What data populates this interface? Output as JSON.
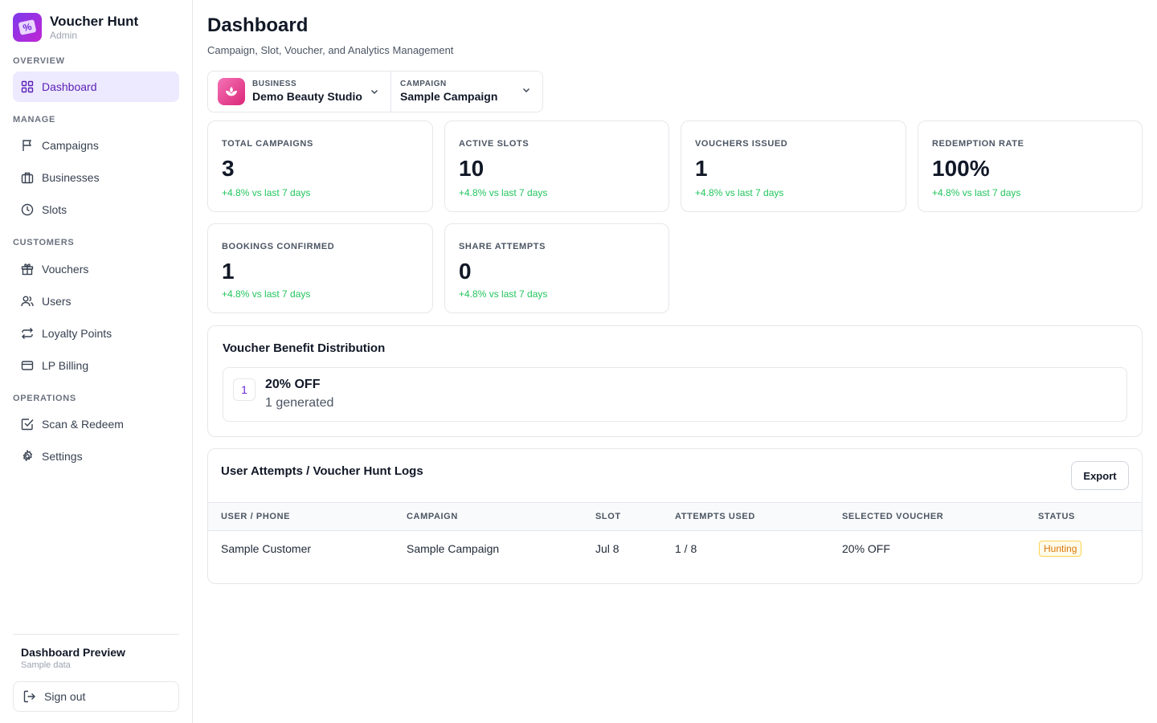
{
  "brand": {
    "name": "Voucher Hunt",
    "sub": "Admin",
    "logo_glyph": "%"
  },
  "sidebar": {
    "sections": {
      "overview": "OVERVIEW",
      "manage": "MANAGE",
      "customers": "CUSTOMERS",
      "operations": "OPERATIONS"
    },
    "items": {
      "dashboard": "Dashboard",
      "campaigns": "Campaigns",
      "businesses": "Businesses",
      "slots": "Slots",
      "vouchers": "Vouchers",
      "users": "Users",
      "loyalty": "Loyalty Points",
      "billing": "LP Billing",
      "scan": "Scan & Redeem",
      "settings": "Settings"
    },
    "footer": {
      "title": "Dashboard Preview",
      "sub": "Sample data",
      "signout": "Sign out"
    }
  },
  "header": {
    "title": "Dashboard",
    "subtitle": "Campaign, Slot, Voucher, and Analytics Management"
  },
  "selector": {
    "business_label": "BUSINESS",
    "business_value": "Demo Beauty Studio",
    "campaign_label": "CAMPAIGN",
    "campaign_value": "Sample Campaign"
  },
  "stats": [
    {
      "label": "TOTAL CAMPAIGNS",
      "value": "3",
      "delta": "+4.8% vs last 7 days"
    },
    {
      "label": "ACTIVE SLOTS",
      "value": "10",
      "delta": "+4.8% vs last 7 days"
    },
    {
      "label": "VOUCHERS ISSUED",
      "value": "1",
      "delta": "+4.8% vs last 7 days"
    },
    {
      "label": "REDEMPTION RATE",
      "value": "100%",
      "delta": "+4.8% vs last 7 days"
    },
    {
      "label": "BOOKINGS CONFIRMED",
      "value": "1",
      "delta": "+4.8% vs last 7 days"
    },
    {
      "label": "SHARE ATTEMPTS",
      "value": "0",
      "delta": "+4.8% vs last 7 days"
    }
  ],
  "distribution": {
    "title": "Voucher Benefit Distribution",
    "items": [
      {
        "rank": "1",
        "name": "20% OFF",
        "count": "1 generated"
      }
    ]
  },
  "logs": {
    "title": "User Attempts / Voucher Hunt Logs",
    "export": "Export",
    "columns": [
      "USER / PHONE",
      "CAMPAIGN",
      "SLOT",
      "ATTEMPTS USED",
      "SELECTED VOUCHER",
      "STATUS"
    ],
    "rows": [
      {
        "user": "Sample Customer",
        "campaign": "Sample Campaign",
        "slot": "Jul 8",
        "attempts": "1 / 8",
        "voucher": "20% OFF",
        "status": "Hunting"
      }
    ]
  },
  "colors": {
    "accent": "#7c3aed",
    "active_bg": "#ede9fe",
    "positive": "#22c55e",
    "warning": "#d97706"
  }
}
